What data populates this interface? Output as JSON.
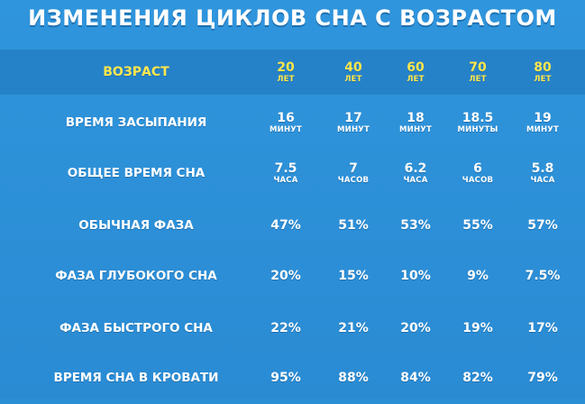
{
  "title": "ИЗМЕНЕНИЯ ЦИКЛОВ СНА С ВОЗРАСТОМ",
  "header": {
    "label": "ВОЗРАСТ",
    "ages": [
      {
        "value": "20",
        "unit": "ЛЕТ"
      },
      {
        "value": "40",
        "unit": "ЛЕТ"
      },
      {
        "value": "60",
        "unit": "ЛЕТ"
      },
      {
        "value": "70",
        "unit": "ЛЕТ"
      },
      {
        "value": "80",
        "unit": "ЛЕТ"
      }
    ]
  },
  "rows": [
    {
      "label": "ВРЕМЯ ЗАСЫПАНИЯ",
      "cells": [
        {
          "value": "16",
          "unit": "МИНУТ"
        },
        {
          "value": "17",
          "unit": "МИНУТ"
        },
        {
          "value": "18",
          "unit": "МИНУТ"
        },
        {
          "value": "18.5",
          "unit": "МИНУТЫ"
        },
        {
          "value": "19",
          "unit": "МИНУТ"
        }
      ]
    },
    {
      "label": "ОБЩЕЕ ВРЕМЯ СНА",
      "cells": [
        {
          "value": "7.5",
          "unit": "ЧАСА"
        },
        {
          "value": "7",
          "unit": "ЧАСОВ"
        },
        {
          "value": "6.2",
          "unit": "ЧАСА"
        },
        {
          "value": "6",
          "unit": "ЧАСОВ"
        },
        {
          "value": "5.8",
          "unit": "ЧАСА"
        }
      ]
    },
    {
      "label": "ОБЫЧНАЯ ФАЗА",
      "cells": [
        {
          "value": "47%",
          "unit": ""
        },
        {
          "value": "51%",
          "unit": ""
        },
        {
          "value": "53%",
          "unit": ""
        },
        {
          "value": "55%",
          "unit": ""
        },
        {
          "value": "57%",
          "unit": ""
        }
      ]
    },
    {
      "label": "ФАЗА ГЛУБОКОГО СНА",
      "cells": [
        {
          "value": "20%",
          "unit": ""
        },
        {
          "value": "15%",
          "unit": ""
        },
        {
          "value": "10%",
          "unit": ""
        },
        {
          "value": "9%",
          "unit": ""
        },
        {
          "value": "7.5%",
          "unit": ""
        }
      ]
    },
    {
      "label": "ФАЗА БЫСТРОГО СНА",
      "cells": [
        {
          "value": "22%",
          "unit": ""
        },
        {
          "value": "21%",
          "unit": ""
        },
        {
          "value": "20%",
          "unit": ""
        },
        {
          "value": "19%",
          "unit": ""
        },
        {
          "value": "17%",
          "unit": ""
        }
      ]
    },
    {
      "label": "ВРЕМЯ СНА В КРОВАТИ",
      "cells": [
        {
          "value": "95%",
          "unit": ""
        },
        {
          "value": "88%",
          "unit": ""
        },
        {
          "value": "84%",
          "unit": ""
        },
        {
          "value": "82%",
          "unit": ""
        },
        {
          "value": "79%",
          "unit": ""
        }
      ]
    }
  ],
  "colors": {
    "background": "#2f95dc",
    "header_band": "#2682c8",
    "header_text": "#ffe74c",
    "body_text": "#ffffff"
  }
}
